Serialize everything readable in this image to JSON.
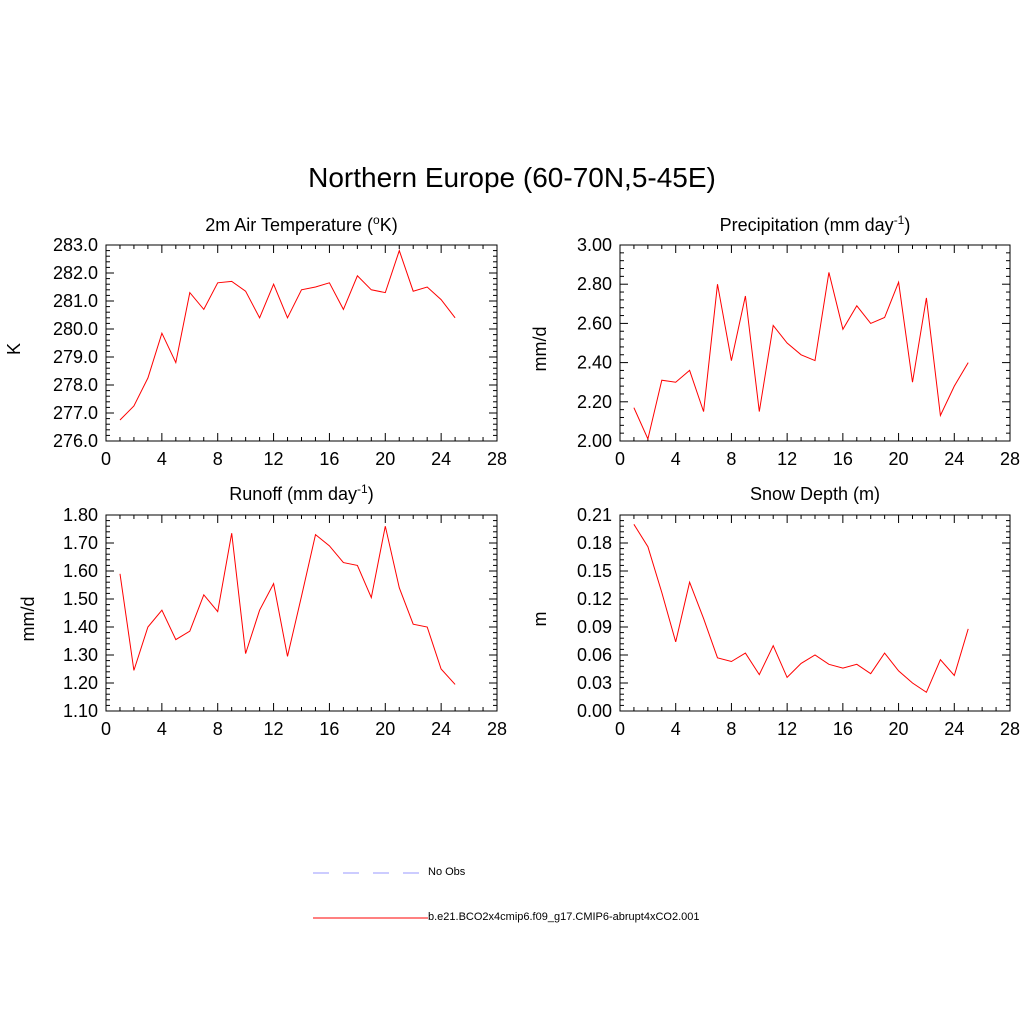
{
  "title": "Northern Europe (60-70N,5-45E)",
  "legend": {
    "items": [
      {
        "label": "No Obs",
        "color": "#9999ff",
        "dashed": true
      },
      {
        "label": "b.e21.BCO2x4cmip6.f09_g17.CMIP6-abrupt4xCO2.001",
        "color": "#ff0000",
        "dashed": false
      }
    ]
  },
  "chart_data": [
    {
      "type": "line",
      "title_main": "2m Air Temperature (",
      "title_sup": "o",
      "title_end": "K)",
      "ylabel": "K",
      "xlim": [
        0,
        28
      ],
      "xticks": [
        0,
        4,
        8,
        12,
        16,
        20,
        24,
        28
      ],
      "ylim": [
        276.0,
        283.0
      ],
      "yticks": [
        "276.0",
        "277.0",
        "278.0",
        "279.0",
        "280.0",
        "281.0",
        "282.0",
        "283.0"
      ],
      "ytick_values": [
        276,
        277,
        278,
        279,
        280,
        281,
        282,
        283
      ],
      "yminor": 0.2,
      "series": [
        {
          "name": "b.e21.BCO2x4cmip6.f09_g17.CMIP6-abrupt4xCO2.001",
          "color": "#ff0000",
          "x": [
            1,
            2,
            3,
            4,
            5,
            6,
            7,
            8,
            9,
            10,
            11,
            12,
            13,
            14,
            15,
            16,
            17,
            18,
            19,
            20,
            21,
            22,
            23,
            24,
            25
          ],
          "values": [
            276.75,
            277.25,
            278.25,
            279.85,
            278.8,
            281.3,
            280.7,
            281.65,
            281.7,
            281.35,
            280.4,
            281.6,
            280.4,
            281.4,
            281.5,
            281.65,
            280.7,
            281.9,
            281.4,
            281.3,
            282.8,
            281.35,
            281.5,
            281.05,
            280.4
          ]
        }
      ]
    },
    {
      "type": "line",
      "title_main": "Precipitation (mm day",
      "title_sup": "-1",
      "title_end": ")",
      "ylabel": "mm/d",
      "xlim": [
        0,
        28
      ],
      "xticks": [
        0,
        4,
        8,
        12,
        16,
        20,
        24,
        28
      ],
      "ylim": [
        2.0,
        3.0
      ],
      "yticks": [
        "2.00",
        "2.20",
        "2.40",
        "2.60",
        "2.80",
        "3.00"
      ],
      "ytick_values": [
        2.0,
        2.2,
        2.4,
        2.6,
        2.8,
        3.0
      ],
      "yminor": 0.04,
      "series": [
        {
          "name": "b.e21.BCO2x4cmip6.f09_g17.CMIP6-abrupt4xCO2.001",
          "color": "#ff0000",
          "x": [
            1,
            2,
            3,
            4,
            5,
            6,
            7,
            8,
            9,
            10,
            11,
            12,
            13,
            14,
            15,
            16,
            17,
            18,
            19,
            20,
            21,
            22,
            23,
            24,
            25
          ],
          "values": [
            2.17,
            2.01,
            2.31,
            2.3,
            2.36,
            2.15,
            2.8,
            2.41,
            2.74,
            2.15,
            2.59,
            2.5,
            2.44,
            2.41,
            2.86,
            2.57,
            2.69,
            2.6,
            2.63,
            2.81,
            2.3,
            2.73,
            2.13,
            2.28,
            2.4
          ]
        }
      ]
    },
    {
      "type": "line",
      "title_main": "Runoff (mm day",
      "title_sup": "-1",
      "title_end": ")",
      "ylabel": "mm/d",
      "xlim": [
        0,
        28
      ],
      "xticks": [
        0,
        4,
        8,
        12,
        16,
        20,
        24,
        28
      ],
      "ylim": [
        1.1,
        1.8
      ],
      "yticks": [
        "1.10",
        "1.20",
        "1.30",
        "1.40",
        "1.50",
        "1.60",
        "1.70",
        "1.80"
      ],
      "ytick_values": [
        1.1,
        1.2,
        1.3,
        1.4,
        1.5,
        1.6,
        1.7,
        1.8
      ],
      "yminor": 0.02,
      "series": [
        {
          "name": "b.e21.BCO2x4cmip6.f09_g17.CMIP6-abrupt4xCO2.001",
          "color": "#ff0000",
          "x": [
            1,
            2,
            3,
            4,
            5,
            6,
            7,
            8,
            9,
            10,
            11,
            12,
            13,
            14,
            15,
            16,
            17,
            18,
            19,
            20,
            21,
            22,
            23,
            24,
            25
          ],
          "values": [
            1.59,
            1.245,
            1.4,
            1.46,
            1.355,
            1.385,
            1.515,
            1.455,
            1.735,
            1.305,
            1.46,
            1.555,
            1.295,
            1.51,
            1.73,
            1.69,
            1.63,
            1.62,
            1.505,
            1.76,
            1.54,
            1.41,
            1.4,
            1.25,
            1.195
          ]
        }
      ]
    },
    {
      "type": "line",
      "title_main": "Snow Depth (m)",
      "title_sup": "",
      "title_end": "",
      "ylabel": "m",
      "xlim": [
        0,
        28
      ],
      "xticks": [
        0,
        4,
        8,
        12,
        16,
        20,
        24,
        28
      ],
      "ylim": [
        0.0,
        0.21
      ],
      "yticks": [
        "0.00",
        "0.03",
        "0.06",
        "0.09",
        "0.12",
        "0.15",
        "0.18",
        "0.21"
      ],
      "ytick_values": [
        0.0,
        0.03,
        0.06,
        0.09,
        0.12,
        0.15,
        0.18,
        0.21
      ],
      "yminor": 0.006,
      "series": [
        {
          "name": "b.e21.BCO2x4cmip6.f09_g17.CMIP6-abrupt4xCO2.001",
          "color": "#ff0000",
          "x": [
            1,
            2,
            3,
            4,
            5,
            6,
            7,
            8,
            9,
            10,
            11,
            12,
            13,
            14,
            15,
            16,
            17,
            18,
            19,
            20,
            21,
            22,
            23,
            24,
            25
          ],
          "values": [
            0.2,
            0.176,
            0.127,
            0.074,
            0.138,
            0.099,
            0.057,
            0.053,
            0.062,
            0.039,
            0.07,
            0.036,
            0.051,
            0.06,
            0.05,
            0.046,
            0.05,
            0.04,
            0.062,
            0.043,
            0.03,
            0.02,
            0.055,
            0.038,
            0.088
          ]
        }
      ]
    }
  ]
}
